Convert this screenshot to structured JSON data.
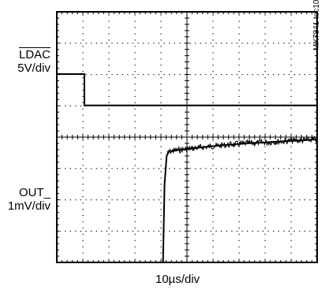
{
  "figure_id": "MX7841 toc10",
  "chart_data": {
    "type": "line",
    "xlabel": "10µs/div",
    "x_unit": "µs",
    "x_per_div": 10,
    "x_divisions": 10,
    "xlim": [
      0,
      100
    ],
    "grid": true,
    "channels": [
      {
        "name_text": "LDAC",
        "name_overline": true,
        "scale_text": "5V/div",
        "volts_per_div": 5,
        "waveform": {
          "description": "digital step: high level, then falls to low level",
          "x": [
            0,
            10.6,
            10.6,
            100
          ],
          "y_div": [
            1,
            1,
            0,
            0
          ]
        }
      },
      {
        "name_text": "OUT_",
        "scale_text": "1mV/div",
        "mV_per_div": 1,
        "waveform": {
          "description": "output stays below screen, rises sharply at ~41µs, then settles slowly with noise",
          "x": [
            40.8,
            41.4,
            42.2,
            43,
            45,
            50,
            55,
            60,
            65,
            70,
            75,
            80,
            85,
            90,
            95,
            100
          ],
          "y_div": [
            -4.2,
            -1.5,
            -0.6,
            -0.47,
            -0.43,
            -0.38,
            -0.33,
            -0.29,
            -0.25,
            -0.22,
            -0.19,
            -0.17,
            -0.14,
            -0.12,
            -0.1,
            -0.07
          ]
        }
      }
    ]
  }
}
